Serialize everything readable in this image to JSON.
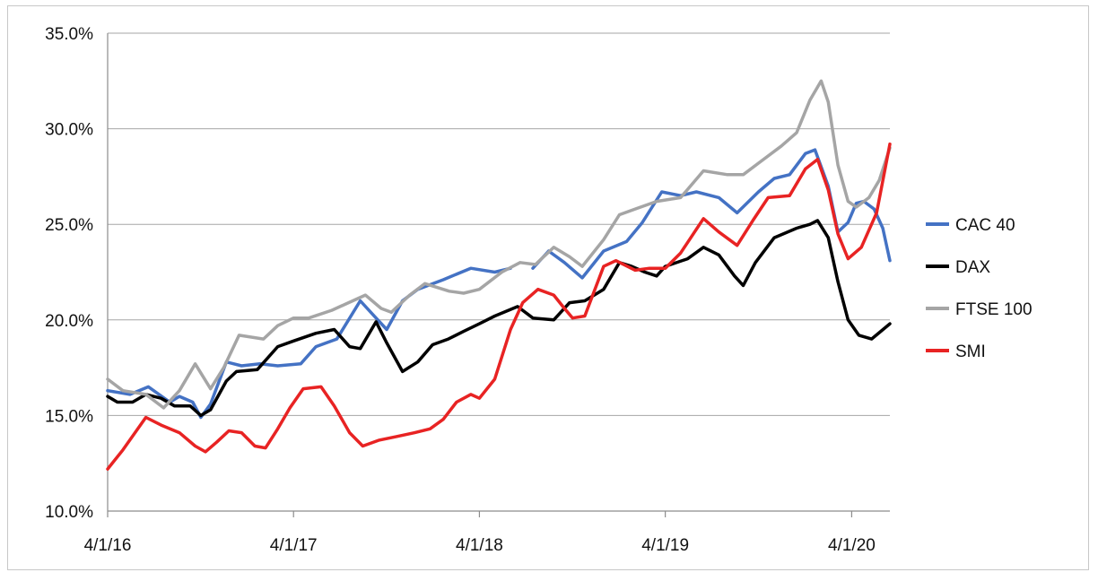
{
  "chart_data": {
    "type": "line",
    "title": "",
    "xlabel": "",
    "ylabel": "",
    "ylim": [
      0.1,
      0.35
    ],
    "xlim": [
      "2016-04-01",
      "2020-06-15"
    ],
    "y_ticks": [
      {
        "value": 0.1,
        "label": "10.0%"
      },
      {
        "value": 0.15,
        "label": "15.0%"
      },
      {
        "value": 0.2,
        "label": "20.0%"
      },
      {
        "value": 0.25,
        "label": "25.0%"
      },
      {
        "value": 0.3,
        "label": "30.0%"
      },
      {
        "value": 0.35,
        "label": "35.0%"
      }
    ],
    "x_ticks": [
      {
        "value": "2016-04-01",
        "label": "4/1/16"
      },
      {
        "value": "2017-04-01",
        "label": "4/1/17"
      },
      {
        "value": "2018-04-01",
        "label": "4/1/18"
      },
      {
        "value": "2019-04-01",
        "label": "4/1/19"
      },
      {
        "value": "2020-04-01",
        "label": "4/1/20"
      }
    ],
    "grid": "horizontal",
    "legend_position": "right",
    "series": [
      {
        "name": "CAC 40",
        "color": "#4472c4",
        "points": [
          [
            "2016-04-01",
            0.163
          ],
          [
            "2016-05-15",
            0.161
          ],
          [
            "2016-06-20",
            0.165
          ],
          [
            "2016-08-01",
            0.157
          ],
          [
            "2016-08-20",
            0.16
          ],
          [
            "2016-09-15",
            0.157
          ],
          [
            "2016-10-01",
            0.149
          ],
          [
            "2016-10-20",
            0.156
          ],
          [
            "2016-11-20",
            0.178
          ],
          [
            "2016-12-20",
            0.176
          ],
          [
            "2017-01-25",
            0.177
          ],
          [
            "2017-03-01",
            0.176
          ],
          [
            "2017-04-15",
            0.177
          ],
          [
            "2017-05-15",
            0.186
          ],
          [
            "2017-06-25",
            0.19
          ],
          [
            "2017-08-10",
            0.21
          ],
          [
            "2017-09-10",
            0.201
          ],
          [
            "2017-10-01",
            0.195
          ],
          [
            "2017-11-01",
            0.21
          ],
          [
            "2017-12-01",
            0.216
          ],
          [
            "2018-01-20",
            0.221
          ],
          [
            "2018-03-15",
            0.227
          ],
          [
            "2018-05-01",
            0.225
          ],
          [
            "2018-06-01",
            0.227
          ]
        ]
      },
      {
        "name": "CAC 40",
        "color": "#4472c4",
        "points": [
          [
            "2018-07-15",
            0.227
          ],
          [
            "2018-08-15",
            0.236
          ],
          [
            "2018-09-15",
            0.23
          ],
          [
            "2018-10-20",
            0.222
          ],
          [
            "2018-12-01",
            0.236
          ],
          [
            "2019-01-15",
            0.241
          ],
          [
            "2019-02-15",
            0.251
          ],
          [
            "2019-03-25",
            0.267
          ],
          [
            "2019-05-01",
            0.265
          ],
          [
            "2019-06-01",
            0.267
          ],
          [
            "2019-07-15",
            0.264
          ],
          [
            "2019-08-20",
            0.256
          ],
          [
            "2019-10-01",
            0.267
          ],
          [
            "2019-11-01",
            0.274
          ],
          [
            "2019-12-01",
            0.276
          ],
          [
            "2020-01-01",
            0.287
          ],
          [
            "2020-01-20",
            0.289
          ],
          [
            "2020-02-15",
            0.27
          ],
          [
            "2020-03-05",
            0.246
          ],
          [
            "2020-03-25",
            0.251
          ],
          [
            "2020-04-10",
            0.261
          ],
          [
            "2020-04-25",
            0.262
          ],
          [
            "2020-05-15",
            0.258
          ],
          [
            "2020-06-01",
            0.248
          ],
          [
            "2020-06-15",
            0.231
          ]
        ]
      },
      {
        "name": "DAX",
        "color": "#000000",
        "points": [
          [
            "2016-04-01",
            0.16
          ],
          [
            "2016-04-20",
            0.157
          ],
          [
            "2016-05-20",
            0.157
          ],
          [
            "2016-06-15",
            0.161
          ],
          [
            "2016-07-15",
            0.159
          ],
          [
            "2016-08-10",
            0.155
          ],
          [
            "2016-09-10",
            0.155
          ],
          [
            "2016-10-01",
            0.15
          ],
          [
            "2016-10-20",
            0.153
          ],
          [
            "2016-11-20",
            0.168
          ],
          [
            "2016-12-10",
            0.173
          ],
          [
            "2017-01-20",
            0.174
          ],
          [
            "2017-03-01",
            0.186
          ],
          [
            "2017-04-01",
            0.189
          ],
          [
            "2017-05-15",
            0.193
          ],
          [
            "2017-06-20",
            0.195
          ],
          [
            "2017-07-20",
            0.186
          ],
          [
            "2017-08-10",
            0.185
          ],
          [
            "2017-09-10",
            0.199
          ],
          [
            "2017-10-01",
            0.188
          ],
          [
            "2017-11-01",
            0.173
          ],
          [
            "2017-12-01",
            0.178
          ],
          [
            "2017-12-30",
            0.187
          ],
          [
            "2018-01-30",
            0.19
          ],
          [
            "2018-03-01",
            0.194
          ],
          [
            "2018-04-01",
            0.198
          ],
          [
            "2018-05-01",
            0.202
          ],
          [
            "2018-06-15",
            0.207
          ],
          [
            "2018-07-15",
            0.201
          ],
          [
            "2018-08-25",
            0.2
          ],
          [
            "2018-09-25",
            0.209
          ],
          [
            "2018-10-25",
            0.21
          ],
          [
            "2018-12-01",
            0.216
          ],
          [
            "2019-01-01",
            0.23
          ],
          [
            "2019-01-25",
            0.228
          ],
          [
            "2019-02-20",
            0.225
          ],
          [
            "2019-03-15",
            0.223
          ],
          [
            "2019-04-01",
            0.228
          ],
          [
            "2019-05-15",
            0.232
          ],
          [
            "2019-06-15",
            0.238
          ],
          [
            "2019-07-15",
            0.234
          ],
          [
            "2019-08-15",
            0.223
          ],
          [
            "2019-09-01",
            0.218
          ],
          [
            "2019-09-25",
            0.23
          ],
          [
            "2019-11-01",
            0.243
          ],
          [
            "2019-12-15",
            0.248
          ],
          [
            "2020-01-10",
            0.25
          ],
          [
            "2020-01-25",
            0.252
          ],
          [
            "2020-02-15",
            0.243
          ],
          [
            "2020-03-05",
            0.22
          ],
          [
            "2020-03-25",
            0.2
          ],
          [
            "2020-04-15",
            0.192
          ],
          [
            "2020-05-10",
            0.19
          ],
          [
            "2020-06-15",
            0.198
          ]
        ]
      },
      {
        "name": "FTSE 100",
        "color": "#a5a5a5",
        "points": [
          [
            "2016-04-01",
            0.169
          ],
          [
            "2016-05-01",
            0.163
          ],
          [
            "2016-06-15",
            0.161
          ],
          [
            "2016-07-20",
            0.154
          ],
          [
            "2016-08-20",
            0.163
          ],
          [
            "2016-09-20",
            0.177
          ],
          [
            "2016-10-20",
            0.164
          ],
          [
            "2016-11-15",
            0.175
          ],
          [
            "2016-12-15",
            0.192
          ],
          [
            "2017-02-01",
            0.19
          ],
          [
            "2017-03-01",
            0.197
          ],
          [
            "2017-04-01",
            0.201
          ],
          [
            "2017-05-01",
            0.201
          ],
          [
            "2017-06-15",
            0.205
          ],
          [
            "2017-08-20",
            0.213
          ],
          [
            "2017-09-20",
            0.206
          ],
          [
            "2017-10-10",
            0.204
          ],
          [
            "2017-11-15",
            0.213
          ],
          [
            "2017-12-15",
            0.219
          ],
          [
            "2018-02-01",
            0.215
          ],
          [
            "2018-03-01",
            0.214
          ],
          [
            "2018-04-01",
            0.216
          ],
          [
            "2018-05-15",
            0.225
          ],
          [
            "2018-06-20",
            0.23
          ],
          [
            "2018-07-20",
            0.229
          ],
          [
            "2018-08-25",
            0.238
          ],
          [
            "2018-09-25",
            0.233
          ],
          [
            "2018-10-20",
            0.228
          ],
          [
            "2018-12-01",
            0.242
          ],
          [
            "2019-01-01",
            0.255
          ],
          [
            "2019-02-01",
            0.258
          ],
          [
            "2019-03-15",
            0.262
          ],
          [
            "2019-05-01",
            0.264
          ],
          [
            "2019-06-15",
            0.278
          ],
          [
            "2019-08-01",
            0.276
          ],
          [
            "2019-09-01",
            0.276
          ],
          [
            "2019-10-01",
            0.282
          ],
          [
            "2019-11-15",
            0.291
          ],
          [
            "2019-12-15",
            0.298
          ],
          [
            "2020-01-10",
            0.315
          ],
          [
            "2020-02-01",
            0.325
          ],
          [
            "2020-02-15",
            0.314
          ],
          [
            "2020-03-05",
            0.281
          ],
          [
            "2020-03-25",
            0.262
          ],
          [
            "2020-04-10",
            0.259
          ],
          [
            "2020-05-05",
            0.264
          ],
          [
            "2020-05-25",
            0.273
          ],
          [
            "2020-06-15",
            0.29
          ]
        ]
      },
      {
        "name": "SMI",
        "color": "#e82323",
        "points": [
          [
            "2016-04-01",
            0.122
          ],
          [
            "2016-05-01",
            0.132
          ],
          [
            "2016-06-15",
            0.149
          ],
          [
            "2016-07-15",
            0.145
          ],
          [
            "2016-08-20",
            0.141
          ],
          [
            "2016-09-20",
            0.134
          ],
          [
            "2016-10-10",
            0.131
          ],
          [
            "2016-11-01",
            0.136
          ],
          [
            "2016-11-25",
            0.142
          ],
          [
            "2016-12-20",
            0.141
          ],
          [
            "2017-01-15",
            0.134
          ],
          [
            "2017-02-05",
            0.133
          ],
          [
            "2017-03-01",
            0.143
          ],
          [
            "2017-03-25",
            0.154
          ],
          [
            "2017-04-20",
            0.164
          ],
          [
            "2017-05-25",
            0.165
          ],
          [
            "2017-06-20",
            0.155
          ],
          [
            "2017-07-20",
            0.141
          ],
          [
            "2017-08-15",
            0.134
          ],
          [
            "2017-09-15",
            0.137
          ],
          [
            "2017-10-20",
            0.139
          ],
          [
            "2017-11-25",
            0.141
          ],
          [
            "2017-12-25",
            0.143
          ],
          [
            "2018-01-20",
            0.148
          ],
          [
            "2018-02-15",
            0.157
          ],
          [
            "2018-03-15",
            0.161
          ],
          [
            "2018-04-01",
            0.159
          ],
          [
            "2018-05-01",
            0.169
          ],
          [
            "2018-06-01",
            0.195
          ],
          [
            "2018-06-25",
            0.209
          ],
          [
            "2018-07-25",
            0.216
          ],
          [
            "2018-08-25",
            0.213
          ],
          [
            "2018-09-15",
            0.206
          ],
          [
            "2018-10-01",
            0.201
          ],
          [
            "2018-10-25",
            0.202
          ],
          [
            "2018-12-01",
            0.228
          ],
          [
            "2018-12-25",
            0.231
          ],
          [
            "2019-02-01",
            0.226
          ],
          [
            "2019-03-01",
            0.227
          ],
          [
            "2019-04-01",
            0.227
          ],
          [
            "2019-05-01",
            0.235
          ],
          [
            "2019-06-15",
            0.253
          ],
          [
            "2019-07-15",
            0.246
          ],
          [
            "2019-08-20",
            0.239
          ],
          [
            "2019-09-20",
            0.252
          ],
          [
            "2019-10-20",
            0.264
          ],
          [
            "2019-12-01",
            0.265
          ],
          [
            "2020-01-01",
            0.279
          ],
          [
            "2020-01-25",
            0.284
          ],
          [
            "2020-02-15",
            0.268
          ],
          [
            "2020-03-05",
            0.245
          ],
          [
            "2020-03-25",
            0.232
          ],
          [
            "2020-04-20",
            0.238
          ],
          [
            "2020-05-20",
            0.256
          ],
          [
            "2020-06-15",
            0.292
          ]
        ]
      }
    ],
    "legend": [
      {
        "label": "CAC 40",
        "color": "#4472c4"
      },
      {
        "label": "DAX",
        "color": "#000000"
      },
      {
        "label": "FTSE 100",
        "color": "#a5a5a5"
      },
      {
        "label": "SMI",
        "color": "#e82323"
      }
    ]
  }
}
